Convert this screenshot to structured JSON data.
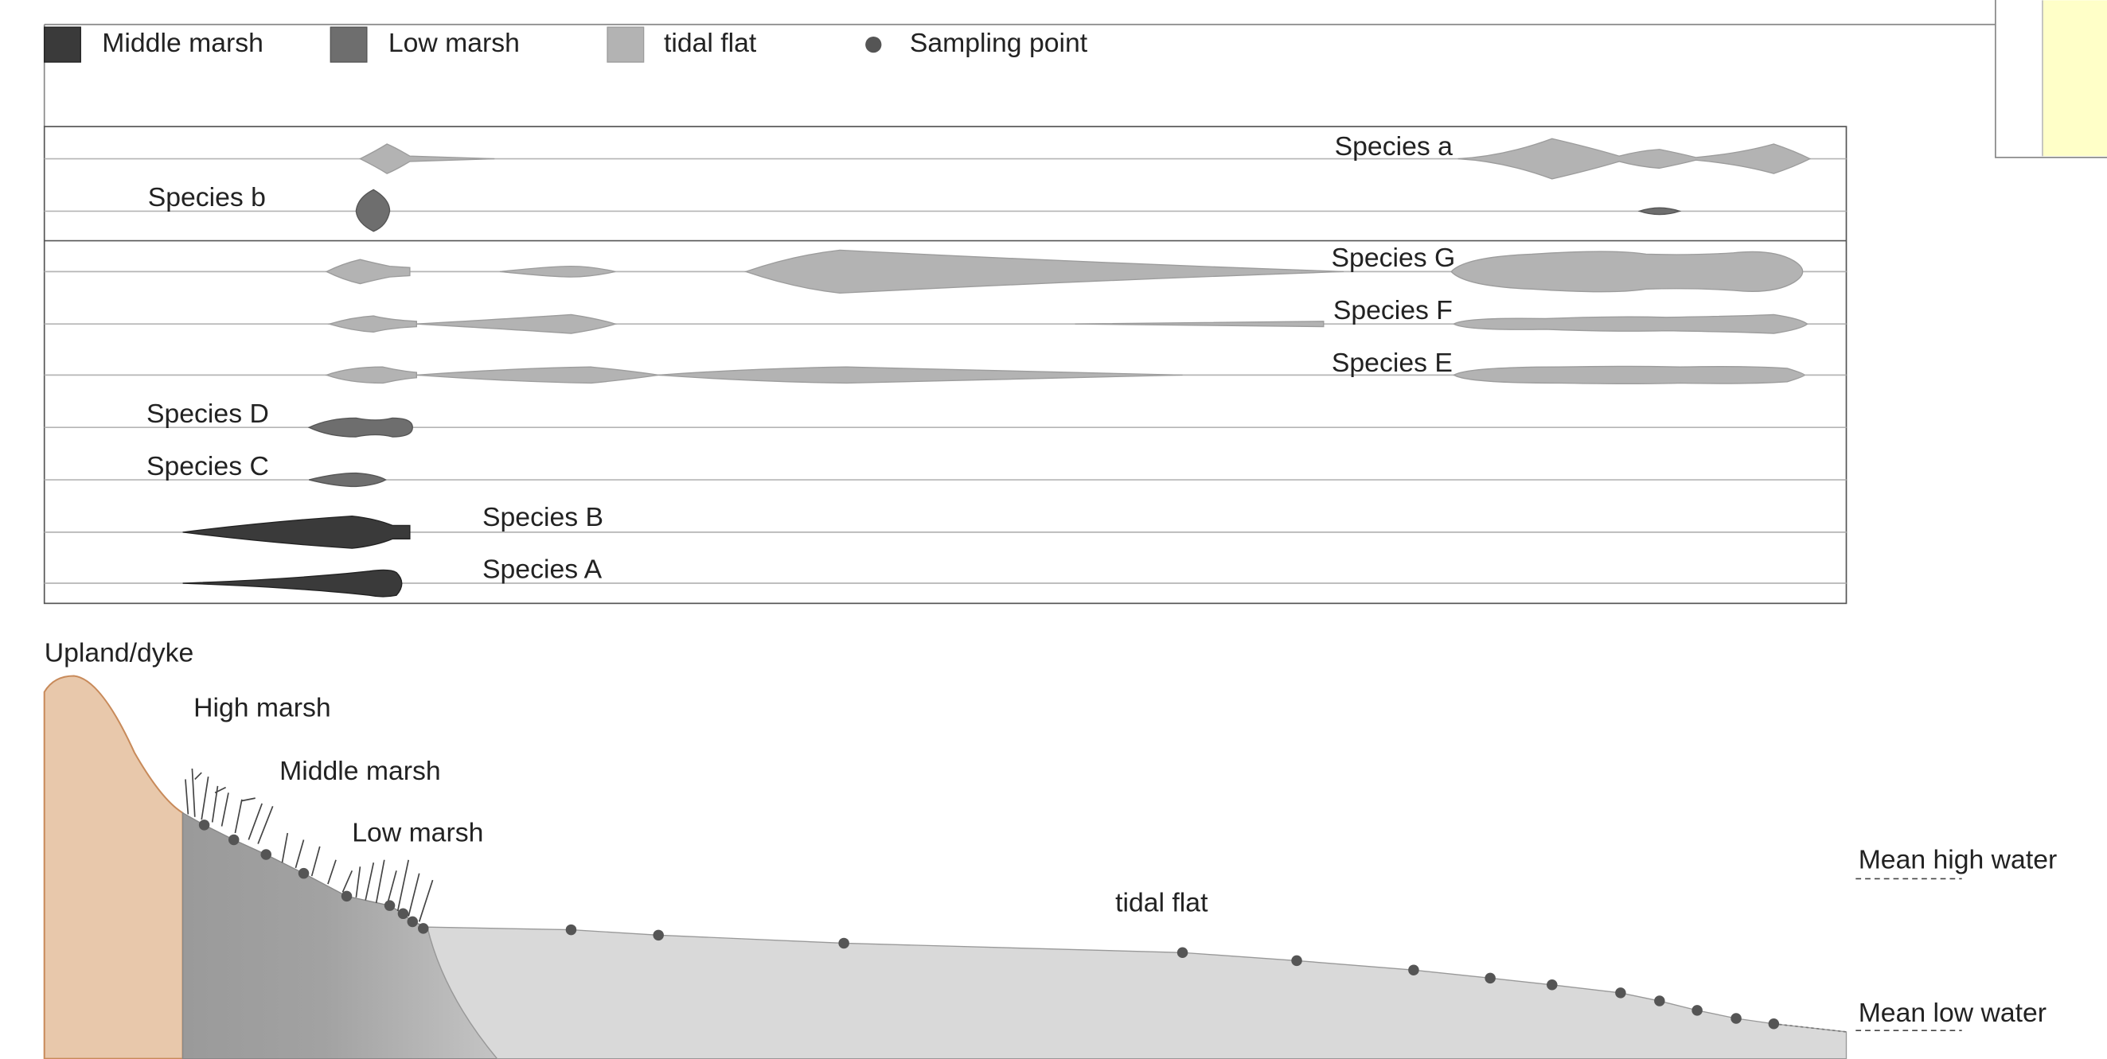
{
  "legend": {
    "items": [
      "Middle marsh",
      "Low marsh",
      "tidal flat",
      "Sampling point"
    ]
  },
  "panel": {
    "species": [
      "Species a",
      "Species b",
      "Species G",
      "Species F",
      "Species E",
      "Species D",
      "Species C",
      "Species B",
      "Species A"
    ]
  },
  "profile": {
    "zones": [
      "Upland/dyke",
      "High marsh",
      "Middle marsh",
      "Low marsh",
      "tidal flat"
    ],
    "water_levels": [
      "Mean high water",
      "Mean low water"
    ]
  }
}
